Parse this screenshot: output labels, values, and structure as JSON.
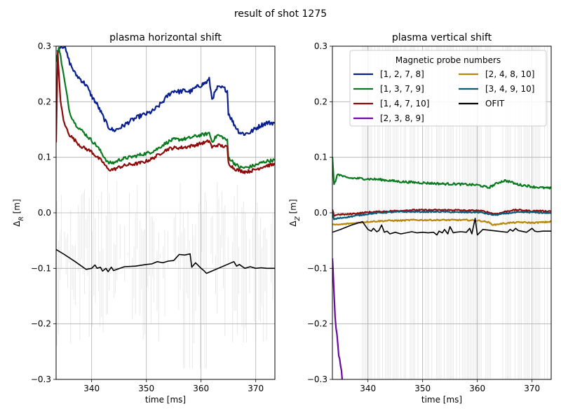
{
  "figure_title": "result of shot 1275",
  "chart_data": [
    {
      "type": "line",
      "title": "plasma horizontal shift",
      "xlabel": "time [ms]",
      "ylabel_main": "Δ",
      "ylabel_sub": "R",
      "ylabel_unit": " [m]",
      "xlim": [
        333.5,
        373.5
      ],
      "ylim": [
        -0.3,
        0.3
      ],
      "xticks": [
        340,
        350,
        360,
        370
      ],
      "yticks": [
        -0.3,
        -0.2,
        -0.1,
        0.0,
        0.1,
        0.2,
        0.3
      ],
      "ytick_labels": [
        "−0.3",
        "−0.2",
        "−0.1",
        "0.0",
        "0.1",
        "0.2",
        "0.3"
      ],
      "grid": true,
      "series": [
        {
          "name": "[1, 2, 7, 8]",
          "color": "#0a1f8f",
          "noise": 0.004,
          "x": [
            333.7,
            334.2,
            335,
            336,
            337,
            338,
            339,
            340,
            341,
            342,
            343,
            344,
            345,
            346,
            347,
            348,
            349,
            350,
            351,
            352,
            353,
            354,
            355,
            356,
            357,
            358,
            359,
            360,
            361,
            361.5,
            362,
            363,
            364,
            364.8,
            365,
            366,
            367,
            368,
            369,
            370,
            371,
            372,
            373.5
          ],
          "y": [
            0.29,
            0.3,
            0.3,
            0.27,
            0.25,
            0.24,
            0.23,
            0.21,
            0.195,
            0.175,
            0.155,
            0.148,
            0.152,
            0.158,
            0.165,
            0.17,
            0.175,
            0.178,
            0.182,
            0.19,
            0.2,
            0.212,
            0.22,
            0.218,
            0.22,
            0.218,
            0.225,
            0.23,
            0.235,
            0.24,
            0.205,
            0.225,
            0.225,
            0.22,
            0.18,
            0.16,
            0.145,
            0.142,
            0.145,
            0.152,
            0.158,
            0.162,
            0.162
          ]
        },
        {
          "name": "[1, 3, 7, 9]",
          "color": "#0a7a1f",
          "noise": 0.003,
          "x": [
            333.5,
            334,
            335,
            336,
            337,
            338,
            339,
            340,
            341,
            342,
            343,
            344,
            345,
            346,
            347,
            348,
            349,
            350,
            351,
            352,
            353,
            354,
            355,
            356,
            357,
            358,
            359,
            360,
            361,
            361.5,
            362,
            363,
            364,
            364.8,
            365,
            366,
            367,
            368,
            369,
            370,
            371,
            372,
            373.5
          ],
          "y": [
            0.27,
            0.3,
            0.24,
            0.18,
            0.16,
            0.15,
            0.14,
            0.13,
            0.12,
            0.105,
            0.09,
            0.09,
            0.095,
            0.098,
            0.1,
            0.102,
            0.105,
            0.107,
            0.11,
            0.115,
            0.122,
            0.128,
            0.132,
            0.132,
            0.133,
            0.135,
            0.138,
            0.14,
            0.142,
            0.144,
            0.128,
            0.14,
            0.136,
            0.13,
            0.1,
            0.09,
            0.082,
            0.081,
            0.083,
            0.086,
            0.09,
            0.093,
            0.095
          ]
        },
        {
          "name": "[1, 4, 7, 10]",
          "color": "#8f0a0a",
          "noise": 0.003,
          "x": [
            333.5,
            333.8,
            334.3,
            335,
            336,
            337,
            338,
            339,
            340,
            341,
            342,
            343,
            344,
            345,
            346,
            347,
            348,
            349,
            350,
            351,
            352,
            353,
            354,
            355,
            356,
            357,
            358,
            359,
            360,
            361,
            361.5,
            362,
            363,
            364,
            364.8,
            365,
            366,
            367,
            368,
            369,
            370,
            371,
            372,
            373.5
          ],
          "y": [
            0.125,
            0.29,
            0.2,
            0.16,
            0.14,
            0.13,
            0.12,
            0.115,
            0.11,
            0.1,
            0.092,
            0.078,
            0.078,
            0.082,
            0.085,
            0.087,
            0.088,
            0.09,
            0.093,
            0.097,
            0.103,
            0.11,
            0.115,
            0.117,
            0.117,
            0.118,
            0.12,
            0.122,
            0.125,
            0.127,
            0.13,
            0.118,
            0.122,
            0.12,
            0.118,
            0.09,
            0.08,
            0.076,
            0.074,
            0.075,
            0.078,
            0.082,
            0.085,
            0.087
          ]
        },
        {
          "name": "OFIT",
          "color": "#000000",
          "noise": 0,
          "x": [
            333.5,
            335,
            337,
            339,
            340,
            340.6,
            341,
            341.6,
            342,
            342.6,
            343,
            343.6,
            344,
            346,
            348,
            350,
            351,
            352,
            353,
            354,
            355,
            356,
            357,
            358,
            358.3,
            359,
            360,
            360.5,
            361,
            366,
            366.5,
            367,
            368,
            369,
            370,
            371,
            372,
            373.5
          ],
          "y": [
            -0.066,
            -0.075,
            -0.088,
            -0.102,
            -0.1,
            -0.094,
            -0.1,
            -0.098,
            -0.105,
            -0.1,
            -0.106,
            -0.098,
            -0.104,
            -0.097,
            -0.096,
            -0.093,
            -0.092,
            -0.088,
            -0.09,
            -0.087,
            -0.086,
            -0.075,
            -0.076,
            -0.074,
            -0.098,
            -0.09,
            -0.1,
            -0.104,
            -0.109,
            -0.088,
            -0.096,
            -0.093,
            -0.1,
            -0.097,
            -0.1,
            -0.099,
            -0.1,
            -0.1
          ]
        }
      ]
    },
    {
      "type": "line",
      "title": "plasma vertical shift",
      "xlabel": "time [ms]",
      "ylabel_main": "Δ",
      "ylabel_sub": "Z",
      "ylabel_unit": " [m]",
      "xlim": [
        333.5,
        373.5
      ],
      "ylim": [
        -0.3,
        0.3
      ],
      "xticks": [
        340,
        350,
        360,
        370
      ],
      "yticks": [
        -0.3,
        -0.2,
        -0.1,
        0.0,
        0.1,
        0.2,
        0.3
      ],
      "ytick_labels": [
        "−0.3",
        "−0.2",
        "−0.1",
        "0.0",
        "0.1",
        "0.2",
        "0.3"
      ],
      "grid": true,
      "legend_title": "Magnetic probe numbers",
      "legend_placement": "top-right",
      "legend_order": [
        "[1, 2, 7, 8]",
        "[1, 3, 7, 9]",
        "[1, 4, 7, 10]",
        "[2, 3, 8, 9]",
        "[2, 4, 8, 10]",
        "[3, 4, 9, 10]",
        "OFIT"
      ],
      "series": [
        {
          "name": "[1, 2, 7, 8]",
          "color": "#0a1f8f",
          "noise": 0,
          "x": [],
          "y": []
        },
        {
          "name": "[1, 3, 7, 9]",
          "color": "#0a7a1f",
          "noise": 0.002,
          "x": [
            333.5,
            333.8,
            334.5,
            336,
            338,
            340,
            342,
            344,
            346,
            348,
            350,
            352,
            354,
            356,
            358,
            360,
            361,
            362,
            363,
            364,
            365,
            366,
            367,
            368,
            369,
            370,
            371,
            372,
            373.5
          ],
          "y": [
            0.1,
            0.05,
            0.07,
            0.063,
            0.062,
            0.061,
            0.06,
            0.058,
            0.056,
            0.055,
            0.054,
            0.053,
            0.052,
            0.052,
            0.051,
            0.05,
            0.048,
            0.045,
            0.05,
            0.055,
            0.058,
            0.056,
            0.052,
            0.05,
            0.049,
            0.047,
            0.046,
            0.045,
            0.044
          ]
        },
        {
          "name": "[1, 4, 7, 10]",
          "color": "#8f0a0a",
          "noise": 0.0012,
          "x": [
            333.5,
            333.8,
            334.5,
            336,
            338,
            340,
            342,
            344,
            346,
            348,
            350,
            352,
            354,
            356,
            358,
            360,
            361,
            362,
            363,
            364,
            365,
            366,
            367,
            368,
            369,
            370,
            371,
            372,
            373.5
          ],
          "y": [
            0.005,
            -0.005,
            -0.003,
            -0.003,
            -0.001,
            0.001,
            0.002,
            0.003,
            0.004,
            0.005,
            0.005,
            0.005,
            0.005,
            0.005,
            0.004,
            0.004,
            0.003,
            0.001,
            -0.002,
            -0.001,
            0.002,
            0.004,
            0.005,
            0.005,
            0.004,
            0.003,
            0.004,
            0.003,
            0.003
          ]
        },
        {
          "name": "[2, 3, 8, 9]",
          "color": "#6a0a9f",
          "noise": 0.006,
          "x": [
            333.5,
            333.7,
            334,
            334.5,
            335,
            335.5
          ],
          "y": [
            -0.08,
            -0.12,
            -0.19,
            -0.24,
            -0.28,
            -0.31
          ]
        },
        {
          "name": "[2, 4, 8, 10]",
          "color": "#b8860b",
          "noise": 0.0012,
          "x": [
            333.5,
            334,
            336,
            338,
            340,
            342,
            344,
            346,
            348,
            350,
            352,
            354,
            356,
            358,
            360,
            361,
            362,
            363,
            364,
            366,
            368,
            370,
            372,
            373.5
          ],
          "y": [
            -0.02,
            -0.022,
            -0.02,
            -0.018,
            -0.016,
            -0.015,
            -0.014,
            -0.014,
            -0.013,
            -0.013,
            -0.013,
            -0.013,
            -0.013,
            -0.013,
            -0.014,
            -0.015,
            -0.017,
            -0.022,
            -0.02,
            -0.018,
            -0.017,
            -0.018,
            -0.017,
            -0.016
          ]
        },
        {
          "name": "[3, 4, 9, 10]",
          "color": "#0a5a7a",
          "noise": 0.0012,
          "x": [
            333.5,
            333.8,
            334.5,
            336,
            338,
            340,
            342,
            344,
            346,
            348,
            350,
            352,
            354,
            356,
            358,
            360,
            361,
            362,
            363,
            364,
            366,
            368,
            370,
            372,
            373.5
          ],
          "y": [
            0.0,
            -0.012,
            -0.01,
            -0.008,
            -0.005,
            -0.002,
            0.0,
            0.001,
            0.002,
            0.002,
            0.002,
            0.002,
            0.002,
            0.001,
            0.001,
            0.001,
            0.0,
            -0.002,
            -0.004,
            -0.003,
            0.0,
            0.001,
            0.001,
            0.0,
            0.0
          ]
        },
        {
          "name": "OFIT",
          "color": "#000000",
          "noise": 0,
          "x": [
            333.5,
            335,
            337,
            339,
            340,
            340.6,
            341,
            341.6,
            342,
            342.5,
            343,
            343.5,
            344,
            345,
            346,
            347,
            348,
            349,
            350,
            351,
            352,
            352.6,
            353,
            353.6,
            354,
            354.6,
            355,
            355.6,
            356,
            357,
            358,
            358.6,
            359,
            359.6,
            360,
            361,
            365.5,
            366,
            366.5,
            367,
            367.5,
            368,
            369,
            370,
            370.5,
            371,
            372,
            373.5
          ],
          "y": [
            -0.035,
            -0.03,
            -0.022,
            -0.016,
            -0.03,
            -0.033,
            -0.028,
            -0.034,
            -0.032,
            -0.022,
            -0.035,
            -0.033,
            -0.038,
            -0.035,
            -0.038,
            -0.036,
            -0.034,
            -0.036,
            -0.035,
            -0.036,
            -0.035,
            -0.04,
            -0.033,
            -0.036,
            -0.03,
            -0.038,
            -0.025,
            -0.036,
            -0.035,
            -0.034,
            -0.035,
            -0.028,
            -0.038,
            -0.01,
            -0.04,
            -0.03,
            -0.035,
            -0.03,
            -0.033,
            -0.028,
            -0.032,
            -0.033,
            -0.035,
            -0.028,
            -0.033,
            -0.034,
            -0.033,
            -0.033
          ]
        }
      ]
    }
  ]
}
